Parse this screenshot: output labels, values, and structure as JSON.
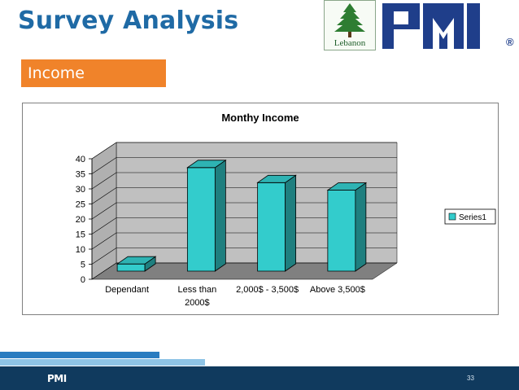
{
  "slide": {
    "title": "Survey Analysis",
    "section": "Income",
    "logo_caption": "Lebanon",
    "brand": "PMI",
    "registered": "®",
    "footer_brand": "PMI",
    "page_number": "33"
  },
  "colors": {
    "title": "#1f6aa5",
    "section_bg": "#f0832a",
    "bar_front": "#33cccc",
    "bar_top": "#2eb3b3",
    "bar_side": "#1f7f7f",
    "wall": "#c0c0c0",
    "floor": "#808080",
    "footer": "#103a5e"
  },
  "chart_data": {
    "type": "bar",
    "title": "Monthy Income",
    "categories": [
      "Dependant",
      "Less than 2000$",
      "2,000$ - 3,500$",
      "Above 3,500$"
    ],
    "category_lines": [
      [
        "Dependant"
      ],
      [
        "Less than",
        "2000$"
      ],
      [
        "2,000$ - 3,500$"
      ],
      [
        "Above 3,500$"
      ]
    ],
    "series": [
      {
        "name": "Series1",
        "values": [
          4,
          36,
          31,
          28.5
        ]
      }
    ],
    "ylim": [
      0,
      40
    ],
    "yticks": [
      0,
      5,
      10,
      15,
      20,
      25,
      30,
      35,
      40
    ],
    "grid": true,
    "legend": "right",
    "three_d": true
  }
}
